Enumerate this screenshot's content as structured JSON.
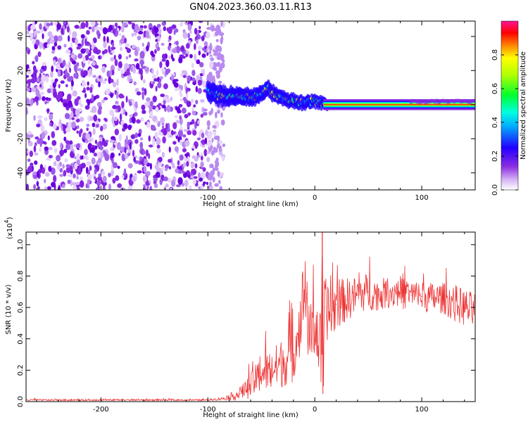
{
  "page_title": "GN04.2023.360.03.11.R13",
  "chart_data": [
    {
      "type": "heatmap",
      "title": "GN04.2023.360.03.11.R13",
      "xlabel": "Height of straight line (km)",
      "ylabel": "Frequency (Hz)",
      "xlim": [
        -270,
        150
      ],
      "ylim": [
        -50,
        49
      ],
      "xticks": [
        -200,
        -100,
        0,
        100
      ],
      "xtick_labels": [
        "-200",
        "-100",
        "0",
        "100"
      ],
      "yticks": [
        -40,
        -20,
        0,
        20,
        40
      ],
      "ytick_labels": [
        "-40",
        "-20",
        "0",
        "20",
        "40"
      ],
      "colorbar": {
        "label": "Normalized spectral amplitude",
        "range": [
          0,
          1
        ],
        "ticks": [
          0,
          0.2,
          0.4,
          0.6,
          0.8
        ],
        "tick_labels": [
          "0.0",
          "0.2",
          "0.4",
          "0.6",
          "0.8"
        ]
      },
      "regions": [
        {
          "x": [
            -270,
            -85
          ],
          "frequency": [
            -50,
            49
          ],
          "amplitude": "low, scattered"
        },
        {
          "x": [
            -100,
            10
          ],
          "frequency_center": [
            8,
            0
          ],
          "amplitude": "medium to high"
        },
        {
          "x": [
            10,
            150
          ],
          "frequency_center": 0,
          "amplitude": "high, narrow band"
        }
      ],
      "ridge": {
        "x": [
          -100,
          -90,
          -80,
          -70,
          -60,
          -50,
          -45,
          -40,
          -30,
          -20,
          -10,
          0,
          10,
          50,
          100,
          150
        ],
        "y": [
          8,
          5,
          5,
          6,
          4,
          6,
          10,
          7,
          4,
          2,
          1,
          2,
          0,
          0,
          0,
          0
        ]
      },
      "colors": {
        "colormap": [
          "#ffffff",
          "#8a2be2",
          "#0000ff",
          "#00ffff",
          "#00ff00",
          "#ffff00",
          "#ff0000",
          "#ff1493"
        ]
      }
    },
    {
      "type": "line",
      "xlabel": "Height of straight line (km)",
      "ylabel": "SNR (10 * v/v)",
      "y_multiplier": "(x10",
      "y_multiplier_exp": "4",
      "y_multiplier_close": ")",
      "xlim": [
        -270,
        150
      ],
      "ylim": [
        0,
        1.08
      ],
      "xticks": [
        -200,
        -100,
        0,
        100
      ],
      "xtick_labels": [
        "-200",
        "-100",
        "0",
        "100"
      ],
      "yticks": [
        0,
        0.2,
        0.4,
        0.6,
        0.8,
        1.0
      ],
      "ytick_labels": [
        "0.0",
        "0.2",
        "0.4",
        "0.6",
        "0.8",
        "1.0"
      ],
      "series": [
        {
          "color": "#ee3333",
          "x": [
            -270,
            -200,
            -150,
            -100,
            -85,
            -70,
            -60,
            -50,
            -40,
            -30,
            -20,
            -15,
            -12,
            -10,
            -5,
            0,
            6,
            7,
            8,
            9,
            15,
            20,
            30,
            40,
            50,
            60,
            70,
            80,
            90,
            100,
            110,
            120,
            130,
            140,
            150
          ],
          "y": [
            0.01,
            0.01,
            0.01,
            0.01,
            0.02,
            0.05,
            0.1,
            0.18,
            0.2,
            0.25,
            0.3,
            0.45,
            0.6,
            0.7,
            0.4,
            0.5,
            0.3,
            1.08,
            0.1,
            0.6,
            0.55,
            0.62,
            0.65,
            0.68,
            0.7,
            0.68,
            0.7,
            0.69,
            0.68,
            0.67,
            0.66,
            0.66,
            0.63,
            0.6,
            0.57
          ],
          "noise_band": [
            0.005,
            0.005,
            0.005,
            0.005,
            0.01,
            0.04,
            0.08,
            0.12,
            0.14,
            0.16,
            0.18,
            0.2,
            0.25,
            0.2,
            0.2,
            0.22,
            0.25,
            0.0,
            0.1,
            0.2,
            0.18,
            0.16,
            0.14,
            0.12,
            0.12,
            0.1,
            0.1,
            0.1,
            0.1,
            0.1,
            0.1,
            0.1,
            0.12,
            0.12,
            0.12
          ]
        }
      ]
    }
  ]
}
